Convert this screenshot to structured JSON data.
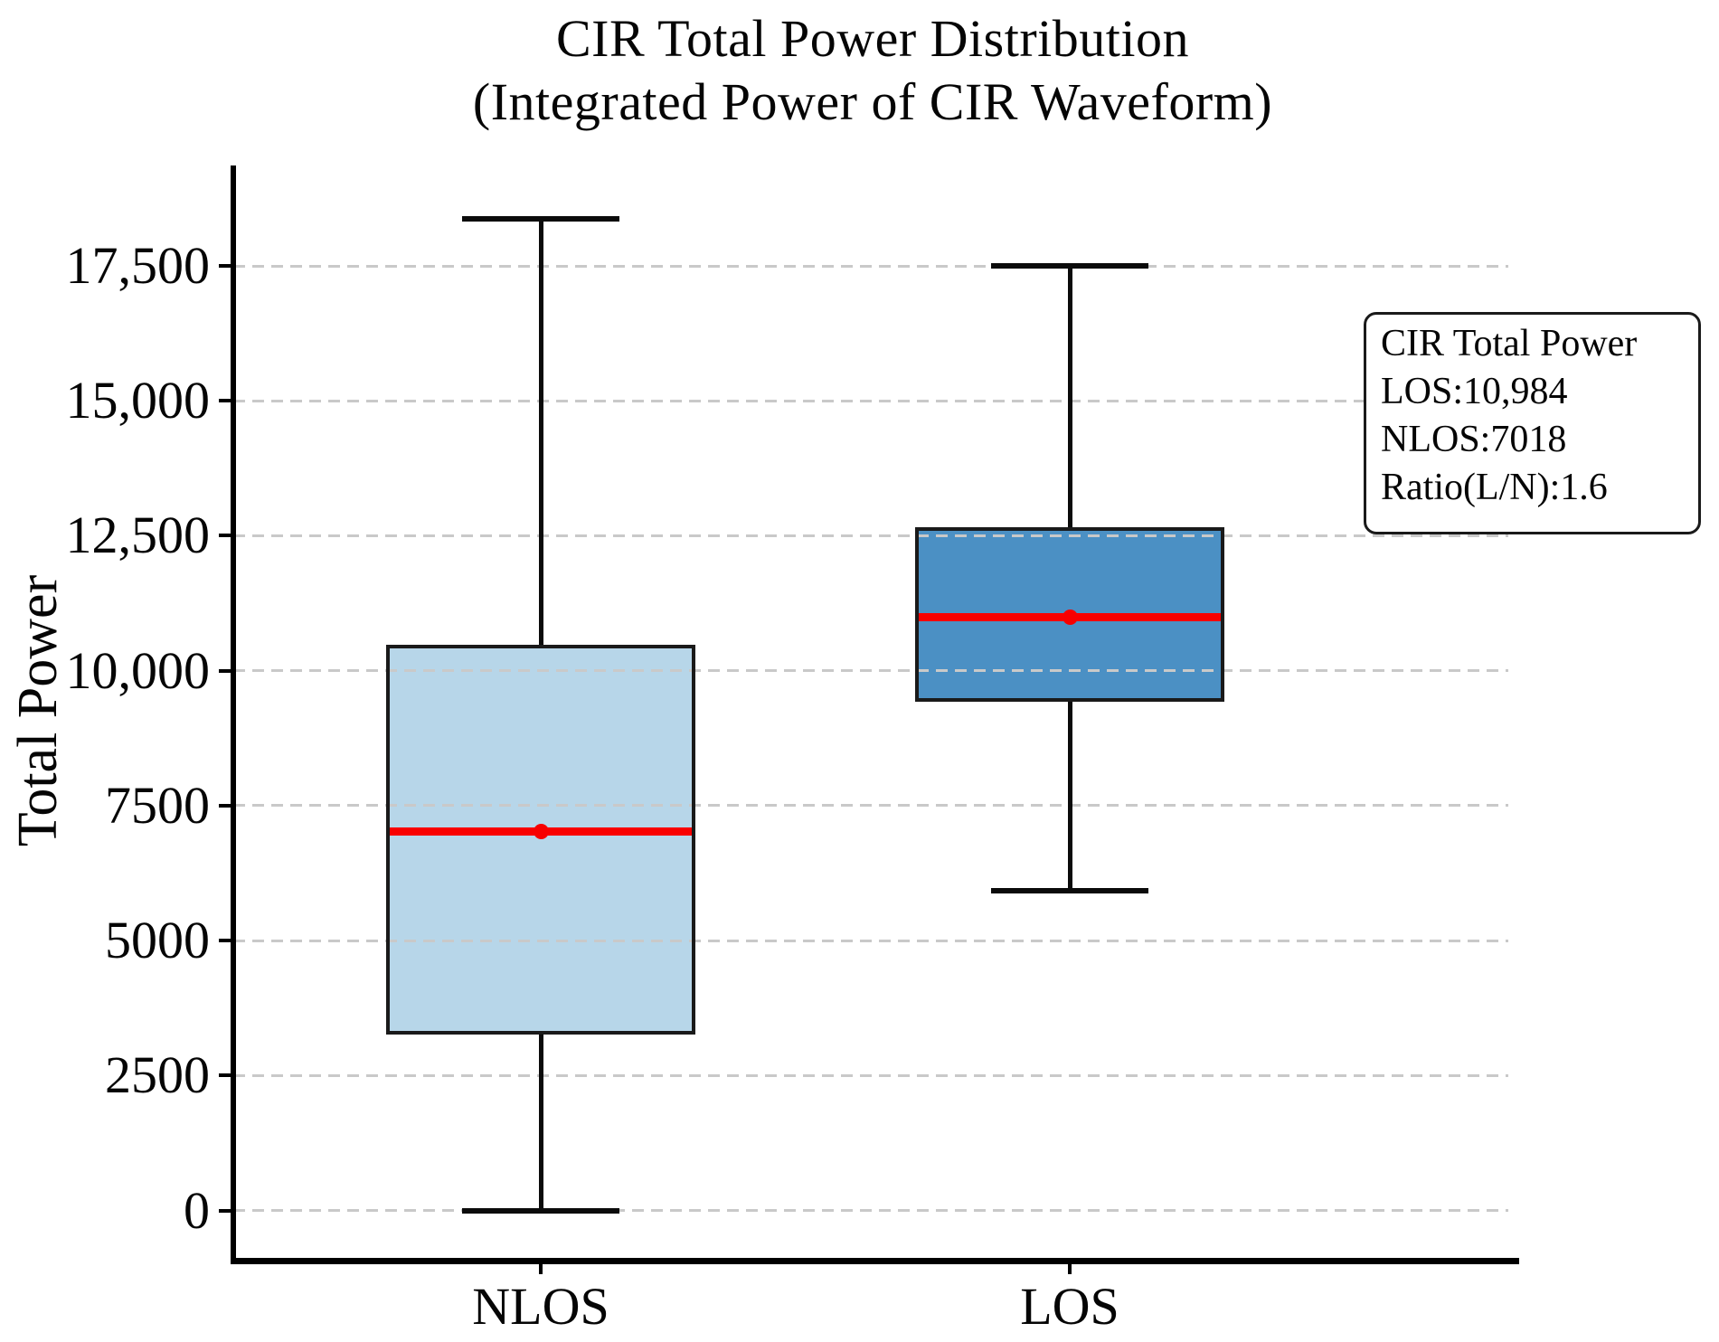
{
  "title": {
    "line1": "CIR Total Power Distribution",
    "line2": "(Integrated Power of CIR Waveform)"
  },
  "axes": {
    "ylabel": "Total Power",
    "yticks": [
      {
        "value": 0,
        "label": "0"
      },
      {
        "value": 2500,
        "label": "2500"
      },
      {
        "value": 5000,
        "label": "5000"
      },
      {
        "value": 7500,
        "label": "7500"
      },
      {
        "value": 10000,
        "label": "10,000"
      },
      {
        "value": 12500,
        "label": "12,500"
      },
      {
        "value": 15000,
        "label": "15,000"
      },
      {
        "value": 17500,
        "label": "17,500"
      }
    ],
    "xcategories": [
      "NLOS",
      "LOS"
    ]
  },
  "chart_data": {
    "type": "box",
    "title": "CIR Total Power Distribution (Integrated Power of CIR Waveform)",
    "xlabel": "",
    "ylabel": "Total Power",
    "categories": [
      "NLOS",
      "LOS"
    ],
    "ylim": [
      -900,
      19350
    ],
    "grid": "horizontal-dashed",
    "legend": "none",
    "series": [
      {
        "name": "NLOS",
        "whisker_low": 0,
        "q1": 3265,
        "median": 7018,
        "q3": 10480,
        "whisker_high": 18370,
        "mean": 7018,
        "fill_color": "#b7d6e9"
      },
      {
        "name": "LOS",
        "whisker_low": 5915,
        "q1": 9420,
        "median": 10984,
        "q3": 12660,
        "whisker_high": 17500,
        "mean": 10984,
        "fill_color": "#4b90c4"
      }
    ]
  },
  "annotation": {
    "lines": [
      "CIR Total Power",
      "LOS:10,984",
      "NLOS:7018",
      "Ratio(L/N):1.6"
    ]
  },
  "colors": {
    "median_line": "#f80000",
    "mean_marker": "#f80000",
    "box_edge": "#1a1a1a",
    "whisker": "#0b0b0b",
    "grid": "#c9c9c9",
    "nlos_fill": "#b7d6e9",
    "los_fill": "#4b90c4"
  }
}
